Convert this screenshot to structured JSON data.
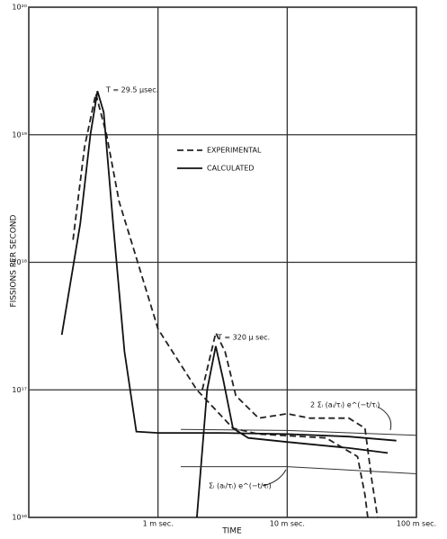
{
  "chart_data": {
    "type": "line",
    "x_label": "TIME",
    "y_label": "FISSIONS PER SECOND",
    "log_x": true,
    "log_y": true,
    "grid": true,
    "xlim": [
      0.1,
      100
    ],
    "ylim": [
      1e+16,
      1e+20
    ],
    "xticks": [
      {
        "value": 1,
        "label": "1 m sec."
      },
      {
        "value": 10,
        "label": "10 m sec."
      },
      {
        "value": 100,
        "label": "100 m sec."
      }
    ],
    "yticks": [
      {
        "value": 1e+16,
        "label": "10¹⁶"
      },
      {
        "value": 1e+17,
        "label": "10¹⁷"
      },
      {
        "value": 1e+18,
        "label": "10¹⁸"
      },
      {
        "value": 1e+19,
        "label": "10¹⁹"
      },
      {
        "value": 1e+20,
        "label": "10²⁰"
      }
    ],
    "series": [
      {
        "name": "EXPERIMENTAL",
        "color": "#222",
        "dashed": true,
        "x": [
          0.22,
          0.27,
          0.33,
          0.4,
          0.5,
          0.63,
          1,
          2,
          3.8,
          6,
          20,
          35,
          40,
          42,
          null,
          2.2,
          2.8,
          3.3,
          4,
          6,
          10,
          15,
          30,
          40,
          45,
          50
        ],
        "values": [
          1.5e+18,
          8e+18,
          2.1e+19,
          1e+19,
          3e+18,
          1.4e+18,
          3e+17,
          1e+17,
          5e+16,
          4.5e+16,
          4.2e+16,
          3e+16,
          1.5e+16,
          1e+16,
          null,
          1e+17,
          2.8e+17,
          2e+17,
          9e+16,
          6e+16,
          6.5e+16,
          6e+16,
          6e+16,
          5e+16,
          2e+16,
          1e+16
        ]
      },
      {
        "name": "CALCULATED",
        "color": "#111",
        "dashed": false,
        "x": [
          0.18,
          0.25,
          0.3,
          0.34,
          0.38,
          0.45,
          0.55,
          0.68,
          1,
          3,
          10,
          30,
          70,
          null,
          2,
          2.4,
          2.8,
          3.2,
          3.8,
          5,
          10,
          30,
          60
        ],
        "values": [
          2.7e+17,
          2e+18,
          1e+19,
          2.2e+19,
          1.5e+19,
          2e+18,
          2e+17,
          4.7e+16,
          4.6e+16,
          4.6e+16,
          4.5e+16,
          4.3e+16,
          4e+16,
          null,
          1e+16,
          1e+17,
          2.2e+17,
          1.2e+17,
          5e+16,
          4.2e+16,
          3.9e+16,
          3.5e+16,
          3.2e+16
        ]
      }
    ],
    "reference_curves": [
      {
        "label": "2 Σᵢ (aᵢ/τᵢ) e^(−t/τᵢ)",
        "color": "#333",
        "x": [
          1.5,
          10,
          100
        ],
        "values": [
          4.9e+16,
          4.8e+16,
          4.4e+16
        ]
      },
      {
        "label": "Σᵢ (aᵢ/τᵢ) e^(−t/τᵢ)",
        "color": "#333",
        "x": [
          1.5,
          10,
          100
        ],
        "values": [
          2.5e+16,
          2.5e+16,
          2.2e+16
        ]
      }
    ],
    "annotations": [
      "T = 29.5 μsec.",
      "T = 320 μ sec."
    ]
  }
}
